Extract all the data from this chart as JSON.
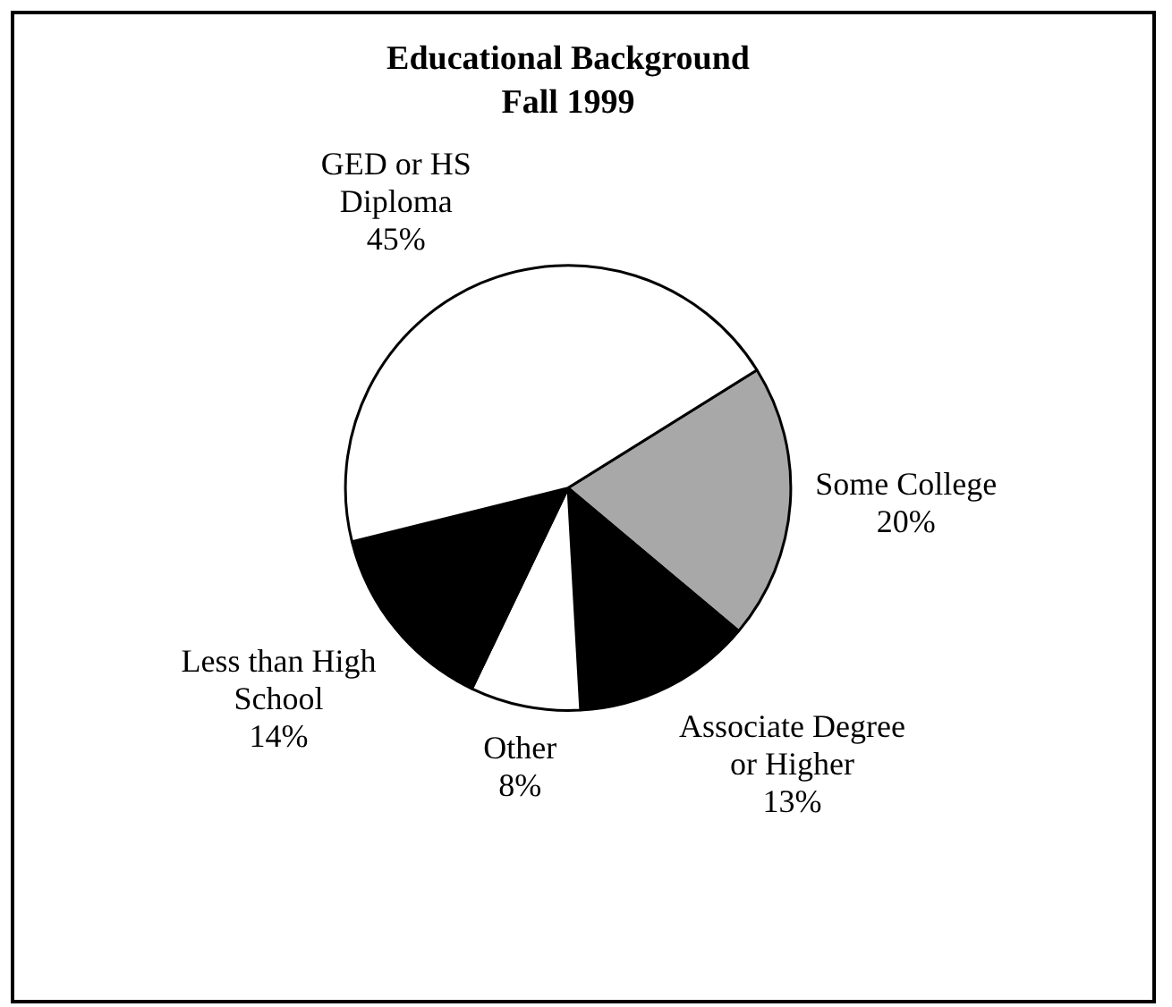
{
  "chart_data": {
    "type": "pie",
    "title": "Educational Background",
    "subtitle": "Fall 1999",
    "categories": [
      "Some College",
      "Associate Degree or Higher",
      "Other",
      "Less than High School",
      "GED or HS Diploma"
    ],
    "values": [
      20,
      13,
      8,
      14,
      45
    ],
    "colors": [
      "#a8a8a8",
      "#000000",
      "#ffffff",
      "#000000",
      "#ffffff"
    ],
    "value_labels": [
      "20%",
      "13%",
      "8%",
      "14%",
      "45%"
    ],
    "legend": false
  }
}
